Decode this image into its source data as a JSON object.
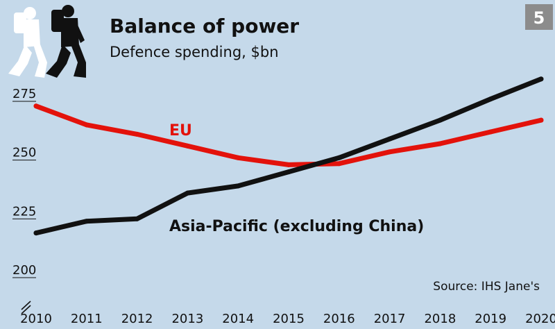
{
  "chart_data": {
    "type": "line",
    "title": "Balance of power",
    "subtitle": "Defence spending, $bn",
    "badge": "5",
    "source": "Source: IHS Jane's",
    "x": [
      "2010",
      "2011",
      "2012",
      "2013",
      "2014",
      "2015",
      "2016",
      "2017",
      "2018",
      "2019",
      "2020"
    ],
    "ylim": [
      200,
      287
    ],
    "yticks": [
      "200",
      "225",
      "250",
      "275"
    ],
    "grid": false,
    "series": [
      {
        "name": "EU",
        "color": "#e3120b",
        "values": [
          273,
          265,
          261,
          256,
          251,
          248,
          248.5,
          253.5,
          257,
          262,
          267
        ]
      },
      {
        "name": "Asia-Pacific (excluding China)",
        "color": "#111111",
        "values": [
          219,
          224,
          225,
          236,
          239,
          245,
          251,
          259,
          267,
          276,
          284.5
        ]
      }
    ],
    "colors": {
      "background": "#c5d9ea",
      "badge": "#8c8c8c"
    },
    "icons": [
      "soldier-silhouettes-icon",
      "axis-break-icon"
    ]
  }
}
